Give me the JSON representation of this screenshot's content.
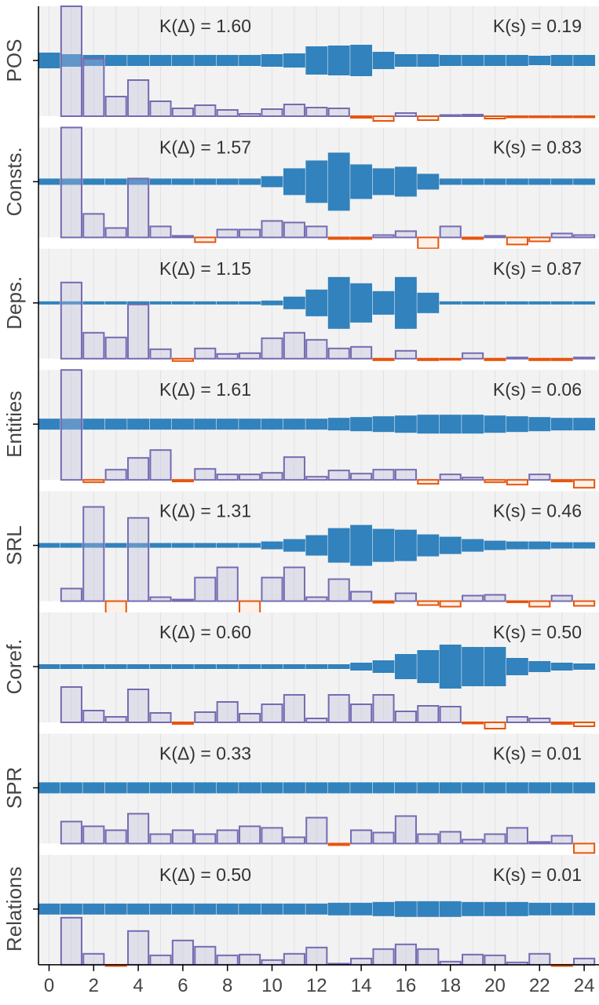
{
  "chart_data": {
    "type": "bar",
    "xlim": [
      -0.5,
      24.5
    ],
    "x_ticks": [
      0,
      2,
      4,
      6,
      8,
      10,
      12,
      14,
      16,
      18,
      20,
      22,
      24
    ],
    "grid": true,
    "colors": {
      "mixing": "#3182bd",
      "delta_pos_stroke": "#756bb1",
      "delta_neg_stroke": "#e6550d",
      "panel_bg": "#f2f2f2"
    },
    "panels": [
      {
        "label": "POS",
        "k_delta": "K(Δ) = 1.60",
        "k_s": "K(s) = 0.19",
        "s": [
          0.1,
          0.08,
          0.07,
          0.07,
          0.07,
          0.07,
          0.07,
          0.07,
          0.07,
          0.07,
          0.08,
          0.09,
          0.18,
          0.19,
          0.2,
          0.11,
          0.08,
          0.08,
          0.07,
          0.07,
          0.07,
          0.07,
          0.06,
          0.07,
          0.07
        ],
        "delta": [
          1.4,
          0.73,
          0.25,
          0.46,
          0.19,
          0.1,
          0.14,
          0.08,
          0.03,
          0.09,
          0.15,
          0.11,
          0.1,
          -0.02,
          -0.06,
          0.04,
          -0.05,
          0.01,
          0.02,
          -0.03,
          -0.01,
          -0.01,
          -0.01,
          -0.01
        ]
      },
      {
        "label": "Consts.",
        "k_delta": "K(Δ) = 1.57",
        "k_s": "K(s) = 0.83",
        "s": [
          0.04,
          0.04,
          0.04,
          0.04,
          0.04,
          0.04,
          0.04,
          0.04,
          0.04,
          0.04,
          0.07,
          0.17,
          0.27,
          0.37,
          0.22,
          0.17,
          0.19,
          0.1,
          0.04,
          0.04,
          0.04,
          0.04,
          0.04,
          0.04,
          0.04
        ],
        "delta": [
          1.4,
          0.3,
          0.12,
          0.75,
          0.14,
          0.02,
          -0.06,
          0.1,
          0.1,
          0.21,
          0.19,
          0.14,
          -0.02,
          -0.02,
          0.03,
          0.08,
          -0.14,
          0.14,
          -0.02,
          0.02,
          -0.09,
          -0.05,
          0.05,
          0.03
        ]
      },
      {
        "label": "Deps.",
        "k_delta": "K(Δ) = 1.15",
        "k_s": "K(s) = 0.87",
        "s": [
          0.02,
          0.02,
          0.02,
          0.02,
          0.02,
          0.02,
          0.02,
          0.02,
          0.02,
          0.02,
          0.03,
          0.08,
          0.17,
          0.33,
          0.25,
          0.15,
          0.33,
          0.13,
          0.02,
          0.02,
          0.02,
          0.02,
          0.02,
          0.02,
          0.02
        ],
        "delta": [
          0.97,
          0.33,
          0.27,
          0.69,
          0.12,
          -0.03,
          0.13,
          0.06,
          0.07,
          0.26,
          0.33,
          0.24,
          0.13,
          0.15,
          -0.02,
          0.1,
          -0.02,
          -0.01,
          0.07,
          -0.02,
          0.01,
          -0.02,
          -0.02,
          0.01
        ]
      },
      {
        "label": "Entities",
        "k_delta": "K(Δ) = 1.61",
        "k_s": "K(s) = 0.06",
        "s": [
          0.07,
          0.07,
          0.07,
          0.07,
          0.07,
          0.07,
          0.07,
          0.07,
          0.07,
          0.07,
          0.07,
          0.07,
          0.07,
          0.08,
          0.09,
          0.1,
          0.11,
          0.12,
          0.12,
          0.12,
          0.11,
          0.1,
          0.09,
          0.08,
          0.08
        ],
        "delta": [
          1.4,
          -0.03,
          0.13,
          0.28,
          0.38,
          -0.02,
          0.14,
          0.07,
          0.07,
          0.09,
          0.29,
          0.04,
          0.12,
          0.08,
          0.13,
          0.13,
          -0.05,
          0.07,
          0.03,
          -0.03,
          -0.06,
          0.07,
          -0.02,
          -0.1
        ]
      },
      {
        "label": "SRL",
        "k_delta": "K(Δ) = 1.31",
        "k_s": "K(s) = 0.46",
        "s": [
          0.03,
          0.03,
          0.03,
          0.03,
          0.03,
          0.03,
          0.03,
          0.03,
          0.03,
          0.03,
          0.05,
          0.08,
          0.13,
          0.22,
          0.26,
          0.21,
          0.2,
          0.14,
          0.11,
          0.08,
          0.06,
          0.05,
          0.05,
          0.04,
          0.04
        ],
        "delta": [
          0.16,
          1.2,
          -0.64,
          1.06,
          0.05,
          0.02,
          0.3,
          0.43,
          -0.16,
          0.3,
          0.43,
          0.05,
          0.28,
          0.12,
          -0.02,
          0.1,
          -0.05,
          -0.07,
          0.07,
          0.08,
          -0.01,
          -0.07,
          0.07,
          -0.06
        ]
      },
      {
        "label": "Coref.",
        "k_delta": "K(Δ) = 0.60",
        "k_s": "K(s) = 0.50",
        "s": [
          0.03,
          0.03,
          0.03,
          0.03,
          0.03,
          0.03,
          0.03,
          0.03,
          0.03,
          0.03,
          0.03,
          0.03,
          0.03,
          0.03,
          0.05,
          0.08,
          0.16,
          0.21,
          0.28,
          0.25,
          0.25,
          0.11,
          0.07,
          0.05,
          0.04
        ],
        "delta": [
          0.45,
          0.15,
          0.07,
          0.42,
          0.12,
          -0.02,
          0.13,
          0.26,
          0.11,
          0.23,
          0.35,
          0.05,
          0.35,
          0.23,
          0.35,
          0.14,
          0.21,
          0.2,
          -0.01,
          -0.08,
          0.07,
          0.05,
          -0.02,
          -0.05
        ]
      },
      {
        "label": "SPR",
        "k_delta": "K(Δ) = 0.33",
        "k_s": "K(s) = 0.01",
        "s": [
          0.07,
          0.07,
          0.07,
          0.07,
          0.07,
          0.07,
          0.07,
          0.07,
          0.07,
          0.07,
          0.07,
          0.07,
          0.07,
          0.07,
          0.07,
          0.07,
          0.07,
          0.07,
          0.07,
          0.07,
          0.07,
          0.07,
          0.07,
          0.07,
          0.07
        ],
        "delta": [
          0.28,
          0.22,
          0.17,
          0.38,
          0.12,
          0.17,
          0.12,
          0.17,
          0.22,
          0.2,
          0.08,
          0.33,
          -0.02,
          0.17,
          0.14,
          0.35,
          0.12,
          0.15,
          0.05,
          0.12,
          0.2,
          0.02,
          0.1,
          -0.12
        ]
      },
      {
        "label": "Relations",
        "k_delta": "K(Δ) = 0.50",
        "k_s": "K(s) = 0.01",
        "s": [
          0.07,
          0.07,
          0.07,
          0.07,
          0.07,
          0.07,
          0.07,
          0.07,
          0.07,
          0.07,
          0.07,
          0.07,
          0.07,
          0.08,
          0.08,
          0.09,
          0.1,
          0.1,
          0.1,
          0.09,
          0.09,
          0.09,
          0.08,
          0.08,
          0.08
        ],
        "delta": [
          0.6,
          0.14,
          -0.01,
          0.43,
          0.12,
          0.31,
          0.23,
          0.12,
          0.13,
          0.06,
          0.14,
          0.22,
          0.01,
          0.08,
          0.2,
          0.26,
          0.2,
          0.04,
          0.13,
          0.12,
          0.03,
          0.14,
          -0.01,
          0.08
        ]
      }
    ]
  }
}
